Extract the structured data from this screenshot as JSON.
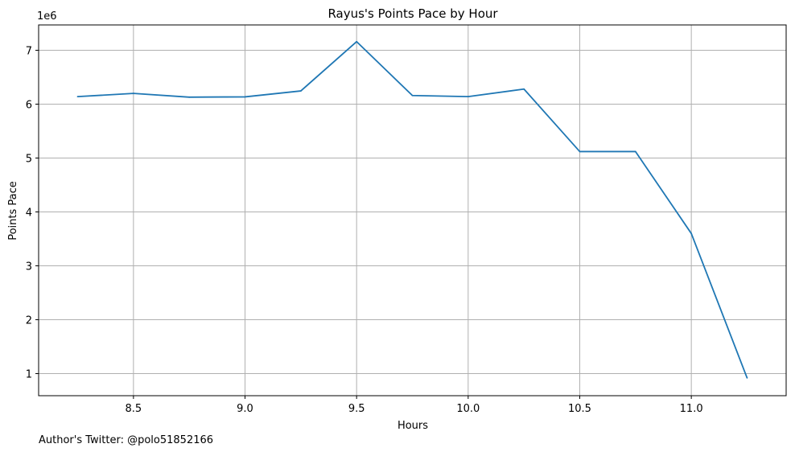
{
  "chart_data": {
    "type": "line",
    "title": "Rayus's Points Pace by Hour",
    "xlabel": "Hours",
    "ylabel": "Points Pace",
    "y_scale_label": "1e6",
    "x": [
      8.25,
      8.5,
      8.75,
      9.0,
      9.25,
      9.5,
      9.75,
      10.0,
      10.25,
      10.5,
      10.75,
      11.0,
      11.25
    ],
    "series": [
      {
        "values": [
          6140000,
          6200000,
          6130000,
          6135000,
          6245000,
          7160000,
          6160000,
          6140000,
          6280000,
          5120000,
          5120000,
          3600000,
          920000
        ]
      }
    ],
    "xlim": [
      8.075,
      11.425
    ],
    "ylim": [
      590000,
      7470000
    ],
    "x_ticks": [
      8.5,
      9.0,
      9.5,
      10.0,
      10.5,
      11.0
    ],
    "x_tick_labels": [
      "8.5",
      "9.0",
      "9.5",
      "10.0",
      "10.5",
      "11.0"
    ],
    "y_ticks": [
      1000000,
      2000000,
      3000000,
      4000000,
      5000000,
      6000000,
      7000000
    ],
    "y_tick_labels": [
      "1",
      "2",
      "3",
      "4",
      "5",
      "6",
      "7"
    ],
    "grid": true,
    "line_color": "#1f77b4"
  },
  "footnote": "Author's Twitter: @polo51852166"
}
